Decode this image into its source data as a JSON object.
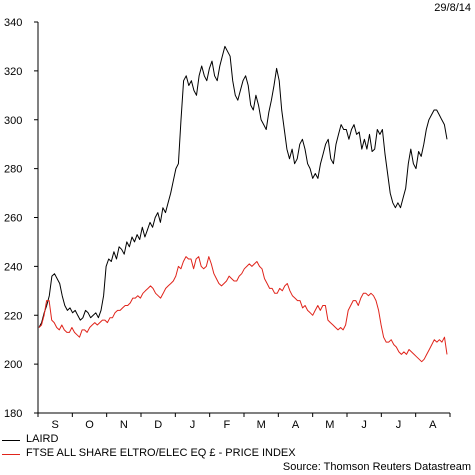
{
  "date_label": "29/8/14",
  "source": "Source: Thomson Reuters Datastream",
  "chart_data": {
    "type": "line",
    "ylim": [
      180,
      340
    ],
    "yticks": [
      180,
      200,
      220,
      240,
      260,
      280,
      300,
      320,
      340
    ],
    "months": [
      "S",
      "O",
      "N",
      "D",
      "J",
      "F",
      "M",
      "A",
      "M",
      "J",
      "J",
      "A"
    ],
    "grid": false,
    "legend_position": "bottom-left",
    "series": [
      {
        "name": "LAIRD",
        "color": "#000000",
        "values": [
          215,
          217,
          221,
          224,
          228,
          236,
          237,
          235,
          233,
          228,
          224,
          222,
          223,
          221,
          222,
          220,
          218,
          219,
          222,
          221,
          219,
          220,
          221,
          219,
          222,
          228,
          240,
          243,
          242,
          246,
          243,
          248,
          247,
          245,
          250,
          248,
          252,
          250,
          253,
          251,
          256,
          252,
          255,
          258,
          256,
          260,
          262,
          258,
          264,
          262,
          266,
          270,
          275,
          280,
          282,
          300,
          316,
          318,
          314,
          316,
          312,
          310,
          318,
          322,
          318,
          316,
          321,
          324,
          318,
          316,
          322,
          326,
          330,
          328,
          326,
          316,
          310,
          308,
          312,
          316,
          318,
          314,
          306,
          304,
          310,
          306,
          300,
          298,
          296,
          303,
          308,
          314,
          321,
          316,
          304,
          296,
          288,
          284,
          288,
          282,
          284,
          290,
          292,
          288,
          282,
          280,
          276,
          278,
          276,
          282,
          286,
          290,
          292,
          284,
          282,
          290,
          294,
          298,
          296,
          296,
          292,
          296,
          298,
          294,
          295,
          288,
          292,
          288,
          294,
          287,
          288,
          296,
          294,
          296,
          286,
          278,
          270,
          266,
          264,
          266,
          264,
          268,
          272,
          282,
          288,
          282,
          280,
          287,
          285,
          290,
          296,
          300,
          302,
          304,
          304,
          302,
          300,
          298,
          292
        ]
      },
      {
        "name": "FTSE ALL SHARE ELTRO/ELEC EQ £ - PRICE INDEX",
        "color": "#e0241b",
        "values": [
          215,
          216,
          220,
          226,
          226,
          218,
          217,
          215,
          214,
          216,
          214,
          213,
          213,
          215,
          213,
          212,
          211,
          214,
          214,
          213,
          215,
          216,
          217,
          216,
          217,
          218,
          218,
          217,
          219,
          219,
          221,
          222,
          222,
          223,
          224,
          224,
          225,
          227,
          227,
          228,
          227,
          229,
          230,
          231,
          232,
          231,
          229,
          228,
          227,
          229,
          231,
          232,
          233,
          234,
          236,
          240,
          239,
          242,
          244,
          243,
          243,
          239,
          243,
          244,
          240,
          239,
          240,
          244,
          241,
          237,
          235,
          233,
          232,
          233,
          234,
          236,
          235,
          234,
          234,
          236,
          237,
          239,
          240,
          241,
          240,
          241,
          242,
          240,
          239,
          235,
          233,
          231,
          231,
          229,
          229,
          231,
          230,
          232,
          233,
          230,
          228,
          227,
          226,
          226,
          223,
          224,
          222,
          221,
          220,
          222,
          224,
          222,
          224,
          224,
          218,
          217,
          216,
          215,
          214,
          215,
          214,
          216,
          222,
          224,
          226,
          226,
          224,
          227,
          229,
          229,
          228,
          229,
          228,
          226,
          222,
          216,
          211,
          209,
          209,
          210,
          208,
          207,
          205,
          204,
          205,
          204,
          206,
          205,
          204,
          203,
          202,
          201,
          202,
          204,
          206,
          208,
          210,
          209,
          210,
          209,
          211,
          204
        ]
      }
    ]
  }
}
